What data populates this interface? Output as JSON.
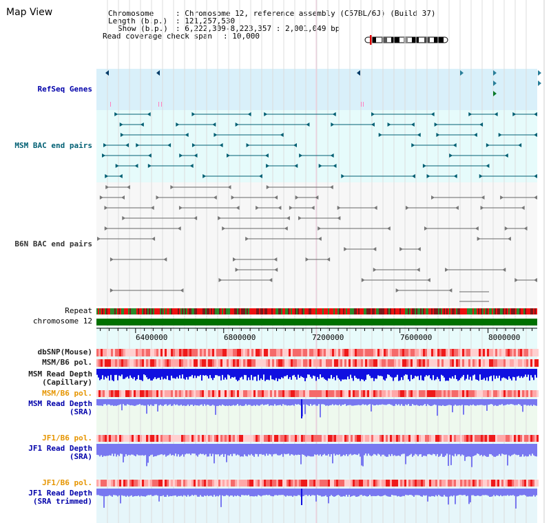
{
  "page": {
    "title": "Map View"
  },
  "info": {
    "chromosome_key": "Chromosome",
    "chromosome_value": ": Chromosome 12, reference assembly (C57BL/6J) (Build 37)",
    "length_key": "Length (b.p.)",
    "length_value": ": 121,257,530",
    "show_key": "Show (b.p.)",
    "show_value": ": 6,222,309-8,223,357 : 2,001,049 bp",
    "coverage_key": "Read coverage check span",
    "coverage_value": ": 10,000"
  },
  "tracks": {
    "refseq": "RefSeq Genes",
    "msm_bac": "MSM BAC end pairs",
    "b6n_bac": "B6N BAC end pairs",
    "repeat": "Repeat",
    "chromosome": "chromosome 12",
    "dbsnp": "dbSNP(Mouse)",
    "msm_b6_pol_1": "MSM/B6 pol.",
    "msm_depth_cap_1": "MSM Read Depth",
    "msm_depth_cap_2": "(Capillary)",
    "msm_b6_pol_2": "MSM/B6 pol.",
    "msm_depth_sra_1": "MSM Read Depth",
    "msm_depth_sra_2": "(SRA)",
    "jf1_b6_pol_1": "JF1/B6 pol.",
    "jf1_depth_sra_1": "JF1 Read Depth",
    "jf1_depth_sra_2": "(SRA)",
    "jf1_b6_pol_2": "JF1/B6 pol.",
    "jf1_depth_trim_1": "JF1 Read Depth",
    "jf1_depth_trim_2": "(SRA trimmed)"
  },
  "axis": {
    "ticks": [
      "6400000",
      "6800000",
      "7200000",
      "7600000",
      "8000000"
    ],
    "tick_values": [
      6400000,
      6800000,
      7200000,
      7600000,
      8000000
    ],
    "range": [
      6222309,
      8223357
    ]
  },
  "colors": {
    "refseq_bg": "#d9f0fa",
    "msm_bg": "#e6fbfb",
    "b6n_bg": "#f7f7f7",
    "chrom_bar": "#007000",
    "snp_light": "#ffb4b4",
    "snp_dark": "#ee2020",
    "depth_dark": "#1010e0",
    "depth_light": "#7878f0",
    "teal": "#005f73"
  }
}
